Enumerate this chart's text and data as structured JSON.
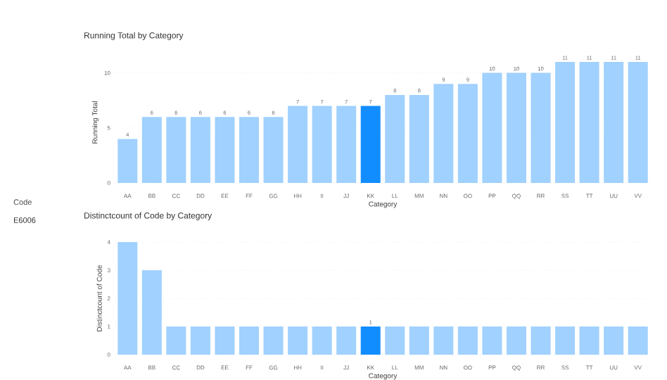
{
  "chart_data": [
    {
      "type": "other",
      "title": "Code",
      "annotations": [
        "E6006"
      ]
    },
    {
      "type": "bar",
      "title": "Running Total by Category",
      "xlabel": "Category",
      "ylabel": "Running Total",
      "categories": [
        "AA",
        "BB",
        "CC",
        "DD",
        "EE",
        "FF",
        "GG",
        "HH",
        "II",
        "JJ",
        "KK",
        "LL",
        "MM",
        "NN",
        "OO",
        "PP",
        "QQ",
        "RR",
        "SS",
        "TT",
        "UU",
        "VV"
      ],
      "values": [
        4,
        6,
        6,
        6,
        6,
        6,
        6,
        7,
        7,
        7,
        7,
        8,
        8,
        9,
        9,
        10,
        10,
        10,
        11,
        11,
        11,
        11
      ],
      "colors": [
        "#a0d1ff",
        "#a0d1ff",
        "#a0d1ff",
        "#a0d1ff",
        "#a0d1ff",
        "#a0d1ff",
        "#a0d1ff",
        "#a0d1ff",
        "#a0d1ff",
        "#a0d1ff",
        "#118dff",
        "#a0d1ff",
        "#a0d1ff",
        "#a0d1ff",
        "#a0d1ff",
        "#a0d1ff",
        "#a0d1ff",
        "#a0d1ff",
        "#a0d1ff",
        "#a0d1ff",
        "#a0d1ff",
        "#a0d1ff"
      ],
      "ylim": [
        0,
        11
      ],
      "yticks": [
        0,
        5,
        10
      ],
      "grid": "y",
      "data_labels": true
    },
    {
      "type": "bar",
      "title": "Distinctcount of Code by Category",
      "xlabel": "Category",
      "ylabel": "Distinctcount of Code",
      "categories": [
        "AA",
        "BB",
        "CC",
        "DD",
        "EE",
        "FF",
        "GG",
        "HH",
        "II",
        "JJ",
        "KK",
        "LL",
        "MM",
        "NN",
        "OO",
        "PP",
        "QQ",
        "RR",
        "SS",
        "TT",
        "UU",
        "VV"
      ],
      "values": [
        4,
        3,
        1,
        1,
        1,
        1,
        1,
        1,
        1,
        1,
        1,
        1,
        1,
        1,
        1,
        1,
        1,
        1,
        1,
        1,
        1,
        1
      ],
      "value_labels": [
        null,
        null,
        null,
        null,
        null,
        null,
        null,
        null,
        null,
        null,
        "1",
        null,
        null,
        null,
        null,
        null,
        null,
        null,
        null,
        null,
        null,
        null
      ],
      "colors": [
        "#a0d1ff",
        "#a0d1ff",
        "#a0d1ff",
        "#a0d1ff",
        "#a0d1ff",
        "#a0d1ff",
        "#a0d1ff",
        "#a0d1ff",
        "#a0d1ff",
        "#a0d1ff",
        "#118dff",
        "#a0d1ff",
        "#a0d1ff",
        "#a0d1ff",
        "#a0d1ff",
        "#a0d1ff",
        "#a0d1ff",
        "#a0d1ff",
        "#a0d1ff",
        "#a0d1ff",
        "#a0d1ff",
        "#a0d1ff"
      ],
      "ylim": [
        0,
        4
      ],
      "yticks": [
        0,
        1,
        2,
        3,
        4
      ],
      "grid": "y"
    }
  ]
}
